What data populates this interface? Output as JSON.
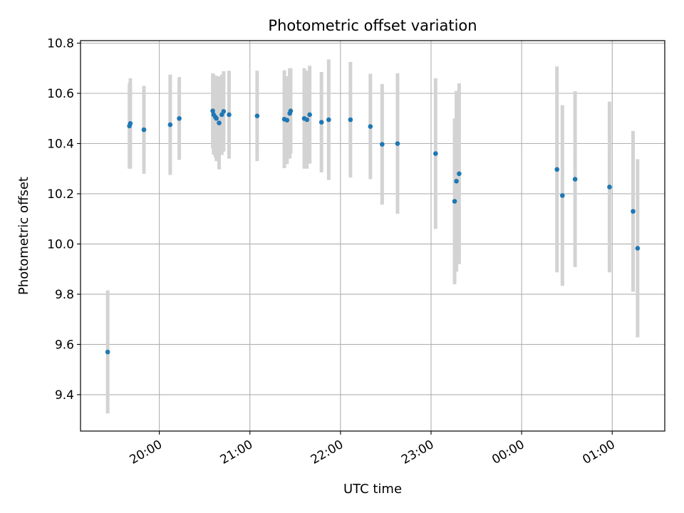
{
  "chart_data": {
    "type": "scatter",
    "title": "Photometric offset variation",
    "xlabel": "UTC time",
    "ylabel": "Photometric offset",
    "x_unit": "UTC time of day (hours after 00:00, continuing past midnight as 24+)",
    "xlim": [
      19.13,
      25.58
    ],
    "ylim": [
      9.255,
      10.81
    ],
    "x_ticks": [
      {
        "value": 20,
        "label": "20:00"
      },
      {
        "value": 21,
        "label": "21:00"
      },
      {
        "value": 22,
        "label": "22:00"
      },
      {
        "value": 23,
        "label": "23:00"
      },
      {
        "value": 24,
        "label": "00:00"
      },
      {
        "value": 25,
        "label": "01:00"
      }
    ],
    "y_ticks": [
      {
        "value": 9.4,
        "label": "9.4"
      },
      {
        "value": 9.6,
        "label": "9.6"
      },
      {
        "value": 9.8,
        "label": "9.8"
      },
      {
        "value": 10.0,
        "label": "10.0"
      },
      {
        "value": 10.2,
        "label": "10.2"
      },
      {
        "value": 10.4,
        "label": "10.4"
      },
      {
        "value": 10.6,
        "label": "10.6"
      },
      {
        "value": 10.8,
        "label": "10.8"
      }
    ],
    "grid": true,
    "legend": "none",
    "point_color": "#1f77b4",
    "errorbar_color": "#d3d3d3",
    "points": [
      {
        "x": 19.43,
        "y": 9.57,
        "err": 0.245
      },
      {
        "x": 19.67,
        "y": 10.47,
        "err": 0.17
      },
      {
        "x": 19.68,
        "y": 10.48,
        "err": 0.18
      },
      {
        "x": 19.83,
        "y": 10.455,
        "err": 0.175
      },
      {
        "x": 20.12,
        "y": 10.475,
        "err": 0.2
      },
      {
        "x": 20.22,
        "y": 10.5,
        "err": 0.165
      },
      {
        "x": 20.59,
        "y": 10.53,
        "err": 0.15
      },
      {
        "x": 20.6,
        "y": 10.515,
        "err": 0.16
      },
      {
        "x": 20.62,
        "y": 10.505,
        "err": 0.16
      },
      {
        "x": 20.63,
        "y": 10.5,
        "err": 0.17
      },
      {
        "x": 20.66,
        "y": 10.482,
        "err": 0.185
      },
      {
        "x": 20.69,
        "y": 10.515,
        "err": 0.16
      },
      {
        "x": 20.71,
        "y": 10.528,
        "err": 0.16
      },
      {
        "x": 20.77,
        "y": 10.515,
        "err": 0.175
      },
      {
        "x": 21.08,
        "y": 10.51,
        "err": 0.18
      },
      {
        "x": 21.38,
        "y": 10.497,
        "err": 0.195
      },
      {
        "x": 21.41,
        "y": 10.493,
        "err": 0.175
      },
      {
        "x": 21.44,
        "y": 10.52,
        "err": 0.18
      },
      {
        "x": 21.45,
        "y": 10.53,
        "err": 0.17
      },
      {
        "x": 21.6,
        "y": 10.5,
        "err": 0.2
      },
      {
        "x": 21.63,
        "y": 10.495,
        "err": 0.195
      },
      {
        "x": 21.66,
        "y": 10.515,
        "err": 0.195
      },
      {
        "x": 21.79,
        "y": 10.485,
        "err": 0.2
      },
      {
        "x": 21.87,
        "y": 10.495,
        "err": 0.24
      },
      {
        "x": 22.11,
        "y": 10.495,
        "err": 0.23
      },
      {
        "x": 22.33,
        "y": 10.468,
        "err": 0.21
      },
      {
        "x": 22.46,
        "y": 10.397,
        "err": 0.24
      },
      {
        "x": 22.63,
        "y": 10.4,
        "err": 0.28
      },
      {
        "x": 23.05,
        "y": 10.36,
        "err": 0.3
      },
      {
        "x": 23.26,
        "y": 10.17,
        "err": 0.33
      },
      {
        "x": 23.28,
        "y": 10.25,
        "err": 0.36
      },
      {
        "x": 23.31,
        "y": 10.28,
        "err": 0.36
      },
      {
        "x": 24.39,
        "y": 10.297,
        "err": 0.41
      },
      {
        "x": 24.45,
        "y": 10.193,
        "err": 0.36
      },
      {
        "x": 24.59,
        "y": 10.258,
        "err": 0.35
      },
      {
        "x": 24.97,
        "y": 10.227,
        "err": 0.34
      },
      {
        "x": 25.23,
        "y": 10.13,
        "err": 0.32
      },
      {
        "x": 25.28,
        "y": 9.983,
        "err": 0.355
      }
    ]
  }
}
